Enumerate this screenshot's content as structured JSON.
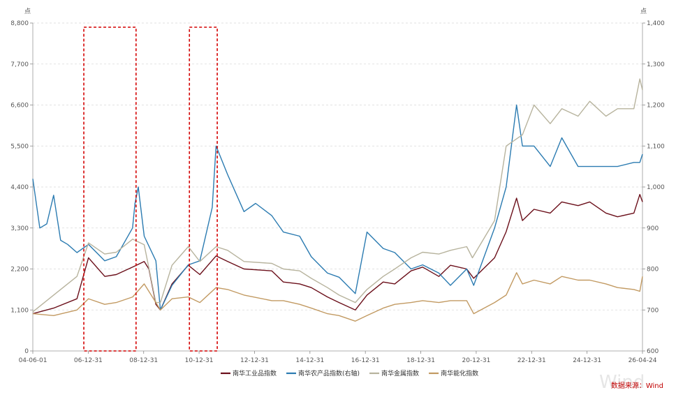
{
  "chart_data": {
    "type": "line",
    "left_unit": "点",
    "right_unit": "点",
    "x_ticks": [
      "04-06-01",
      "06-12-31",
      "08-12-31",
      "10-12-31",
      "12-12-31",
      "14-12-31",
      "16-12-31",
      "18-12-31",
      "20-12-31",
      "22-12-31",
      "24-12-31",
      "26-04-24"
    ],
    "x_range": [
      "2004-06-01",
      "2026-04-24"
    ],
    "y_left_ticks": [
      "0",
      "1,100",
      "2,200",
      "3,300",
      "4,400",
      "5,500",
      "6,600",
      "7,700",
      "8,800"
    ],
    "y_left_range": [
      0,
      8800
    ],
    "y_right_ticks": [
      "600",
      "700",
      "800",
      "900",
      "1,000",
      "1,100",
      "1,200",
      "1,300",
      "1,400"
    ],
    "y_right_range": [
      600,
      1400
    ],
    "grid": "horizontal dashed",
    "legend_position": "bottom",
    "series": [
      {
        "name": "南华工业品指数",
        "axis": "left",
        "color": "#6b0f1a",
        "x": [
          "2004-06-01",
          "2005-03-01",
          "2006-01-01",
          "2006-06-01",
          "2007-01-01",
          "2007-06-01",
          "2008-01-01",
          "2008-06-01",
          "2008-08-01",
          "2008-11-01",
          "2008-12-31",
          "2009-06-01",
          "2009-12-31",
          "2010-06-01",
          "2010-12-31",
          "2011-06-01",
          "2012-01-01",
          "2012-12-31",
          "2013-06-01",
          "2013-12-31",
          "2014-06-01",
          "2014-12-31",
          "2015-06-01",
          "2015-12-31",
          "2016-06-01",
          "2016-12-31",
          "2017-06-01",
          "2017-12-31",
          "2018-06-01",
          "2018-12-31",
          "2019-06-01",
          "2019-12-31",
          "2020-04-01",
          "2020-12-31",
          "2021-06-01",
          "2021-10-15",
          "2021-12-31",
          "2022-06-01",
          "2022-12-31",
          "2023-06-01",
          "2023-12-31",
          "2024-06-01",
          "2024-12-31",
          "2025-06-01",
          "2026-01-01",
          "2026-03-20",
          "2026-04-24"
        ],
        "values": [
          1000,
          1150,
          1400,
          2500,
          2000,
          2050,
          2250,
          2400,
          2200,
          1250,
          1100,
          1800,
          2300,
          2050,
          2550,
          2400,
          2200,
          2150,
          1850,
          1800,
          1700,
          1450,
          1300,
          1100,
          1500,
          1850,
          1800,
          2150,
          2250,
          2000,
          2300,
          2200,
          1950,
          2500,
          3200,
          4100,
          3500,
          3800,
          3700,
          4000,
          3900,
          4000,
          3700,
          3600,
          3700,
          4200,
          4000
        ]
      },
      {
        "name": "南华农产品指数(右轴)",
        "axis": "right",
        "color": "#2b7bb1",
        "x": [
          "2004-06-01",
          "2004-09-01",
          "2004-12-01",
          "2005-03-01",
          "2005-06-01",
          "2005-09-01",
          "2006-01-01",
          "2006-06-01",
          "2006-12-31",
          "2007-06-01",
          "2007-12-31",
          "2008-02-01",
          "2008-03-15",
          "2008-06-01",
          "2008-11-01",
          "2008-12-31",
          "2009-06-01",
          "2009-12-31",
          "2010-06-01",
          "2010-11-10",
          "2010-12-31",
          "2011-06-01",
          "2012-01-01",
          "2012-06-01",
          "2012-12-31",
          "2013-06-01",
          "2013-12-31",
          "2014-06-01",
          "2014-12-31",
          "2015-06-01",
          "2015-12-31",
          "2016-06-01",
          "2016-12-31",
          "2017-06-01",
          "2017-12-31",
          "2018-06-01",
          "2018-12-31",
          "2019-06-01",
          "2019-12-31",
          "2020-04-01",
          "2020-12-31",
          "2021-06-01",
          "2021-10-15",
          "2021-12-31",
          "2022-06-01",
          "2022-12-31",
          "2023-06-01",
          "2023-12-31",
          "2024-06-01",
          "2024-12-31",
          "2025-06-01",
          "2026-01-01",
          "2026-03-20",
          "2026-04-24"
        ],
        "values": [
          1020,
          900,
          910,
          980,
          870,
          860,
          840,
          860,
          820,
          830,
          900,
          960,
          1000,
          880,
          820,
          700,
          760,
          810,
          820,
          950,
          1100,
          1030,
          940,
          960,
          930,
          890,
          880,
          830,
          790,
          780,
          740,
          890,
          850,
          840,
          800,
          810,
          790,
          760,
          800,
          760,
          900,
          1000,
          1200,
          1100,
          1100,
          1050,
          1120,
          1050,
          1050,
          1050,
          1050,
          1060,
          1060,
          1080
        ]
      },
      {
        "name": "南华金属指数",
        "axis": "left",
        "color": "#b7b39d",
        "x": [
          "2004-06-01",
          "2005-03-01",
          "2006-01-01",
          "2006-06-01",
          "2006-12-31",
          "2007-06-01",
          "2008-01-01",
          "2008-06-01",
          "2008-11-01",
          "2008-12-31",
          "2009-06-01",
          "2009-12-31",
          "2010-06-01",
          "2010-12-31",
          "2011-06-01",
          "2012-01-01",
          "2012-12-31",
          "2013-06-01",
          "2013-12-31",
          "2014-06-01",
          "2014-12-31",
          "2015-06-01",
          "2015-12-31",
          "2016-06-01",
          "2016-12-31",
          "2017-06-01",
          "2017-12-31",
          "2018-06-01",
          "2018-12-31",
          "2019-06-01",
          "2019-12-31",
          "2020-03-15",
          "2020-12-31",
          "2021-06-01",
          "2021-12-31",
          "2022-06-01",
          "2022-12-31",
          "2023-06-01",
          "2023-12-31",
          "2024-06-01",
          "2024-12-31",
          "2025-06-01",
          "2026-01-01",
          "2026-03-20",
          "2026-04-24"
        ],
        "values": [
          1050,
          1500,
          2000,
          2900,
          2600,
          2650,
          3000,
          2850,
          1300,
          1300,
          2300,
          2800,
          2400,
          2800,
          2700,
          2400,
          2350,
          2200,
          2150,
          1950,
          1700,
          1500,
          1300,
          1650,
          2000,
          2200,
          2500,
          2650,
          2600,
          2700,
          2800,
          2500,
          3500,
          5500,
          5800,
          6600,
          6100,
          6500,
          6300,
          6700,
          6300,
          6500,
          6500,
          7300,
          7000
        ]
      },
      {
        "name": "南华能化指数",
        "axis": "left",
        "color": "#c29a62",
        "x": [
          "2004-06-01",
          "2005-03-01",
          "2006-01-01",
          "2006-06-01",
          "2006-12-31",
          "2007-06-01",
          "2008-01-01",
          "2008-06-01",
          "2008-11-01",
          "2008-12-31",
          "2009-06-01",
          "2009-12-31",
          "2010-06-01",
          "2010-12-31",
          "2011-06-01",
          "2012-01-01",
          "2012-12-31",
          "2013-06-01",
          "2013-12-31",
          "2014-06-01",
          "2014-12-31",
          "2015-06-01",
          "2015-12-31",
          "2016-06-01",
          "2016-12-31",
          "2017-06-01",
          "2017-12-31",
          "2018-06-01",
          "2018-12-31",
          "2019-06-01",
          "2019-12-31",
          "2020-04-01",
          "2020-12-31",
          "2021-06-01",
          "2021-10-15",
          "2021-12-31",
          "2022-06-01",
          "2022-12-31",
          "2023-06-01",
          "2023-12-31",
          "2024-06-01",
          "2024-12-31",
          "2025-06-01",
          "2026-01-01",
          "2026-03-20",
          "2026-04-24"
        ],
        "values": [
          1000,
          950,
          1100,
          1400,
          1250,
          1300,
          1450,
          1800,
          1300,
          1100,
          1400,
          1450,
          1300,
          1700,
          1650,
          1500,
          1350,
          1350,
          1250,
          1150,
          1000,
          950,
          800,
          950,
          1150,
          1250,
          1300,
          1350,
          1300,
          1350,
          1350,
          1000,
          1300,
          1500,
          2100,
          1800,
          1900,
          1800,
          2000,
          1900,
          1900,
          1800,
          1700,
          1650,
          1600,
          2000
        ]
      }
    ],
    "highlight_boxes": [
      {
        "from": "2006-04-01",
        "to": "2008-02-15"
      },
      {
        "from": "2010-01-15",
        "to": "2011-01-15"
      }
    ],
    "source_label": "数据来源：Wind",
    "watermark": "Wind"
  }
}
